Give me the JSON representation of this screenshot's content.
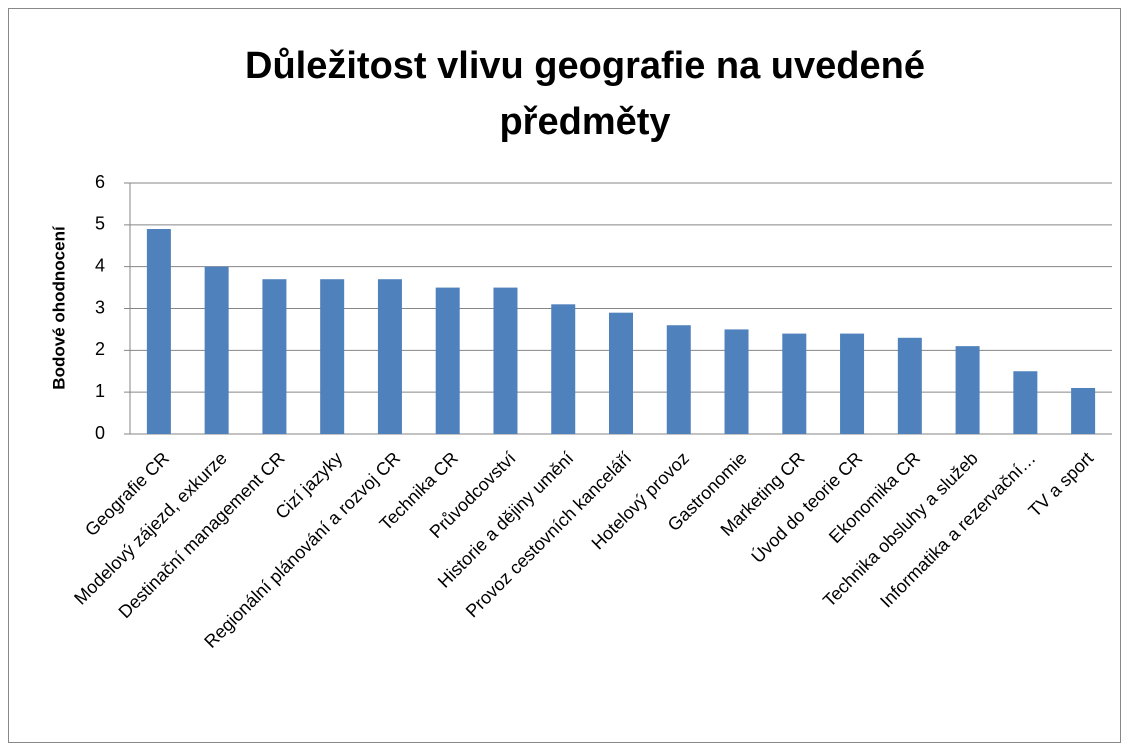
{
  "chart_data": {
    "type": "bar",
    "title": "Důležitost vlivu geografie na uvedené předměty",
    "y_label": "Bodové ohodnocení",
    "categories": [
      "Geografie CR",
      "Modelový zájezd, exkurze",
      "Destinační management CR",
      "Cizí jazyky",
      "Regionální plánování a rozvoj CR",
      "Technika CR",
      "Průvodcovství",
      "Historie a dějiny umění",
      "Provoz cestovních kanceláří",
      "Hotelový provoz",
      "Gastronomie",
      "Marketing CR",
      "Úvod do teorie CR",
      "Ekonomika CR",
      "Technika obsluhy a služeb",
      "Informatika a rezervační…",
      "TV a sport"
    ],
    "values": [
      4.9,
      4.0,
      3.7,
      3.7,
      3.7,
      3.5,
      3.5,
      3.1,
      2.9,
      2.6,
      2.5,
      2.4,
      2.4,
      2.3,
      2.1,
      1.5,
      1.1
    ],
    "color": "#4f81bd",
    "ylim": [
      0,
      6
    ],
    "yticks": [
      0,
      1,
      2,
      3,
      4,
      5,
      6
    ],
    "grid": true
  }
}
